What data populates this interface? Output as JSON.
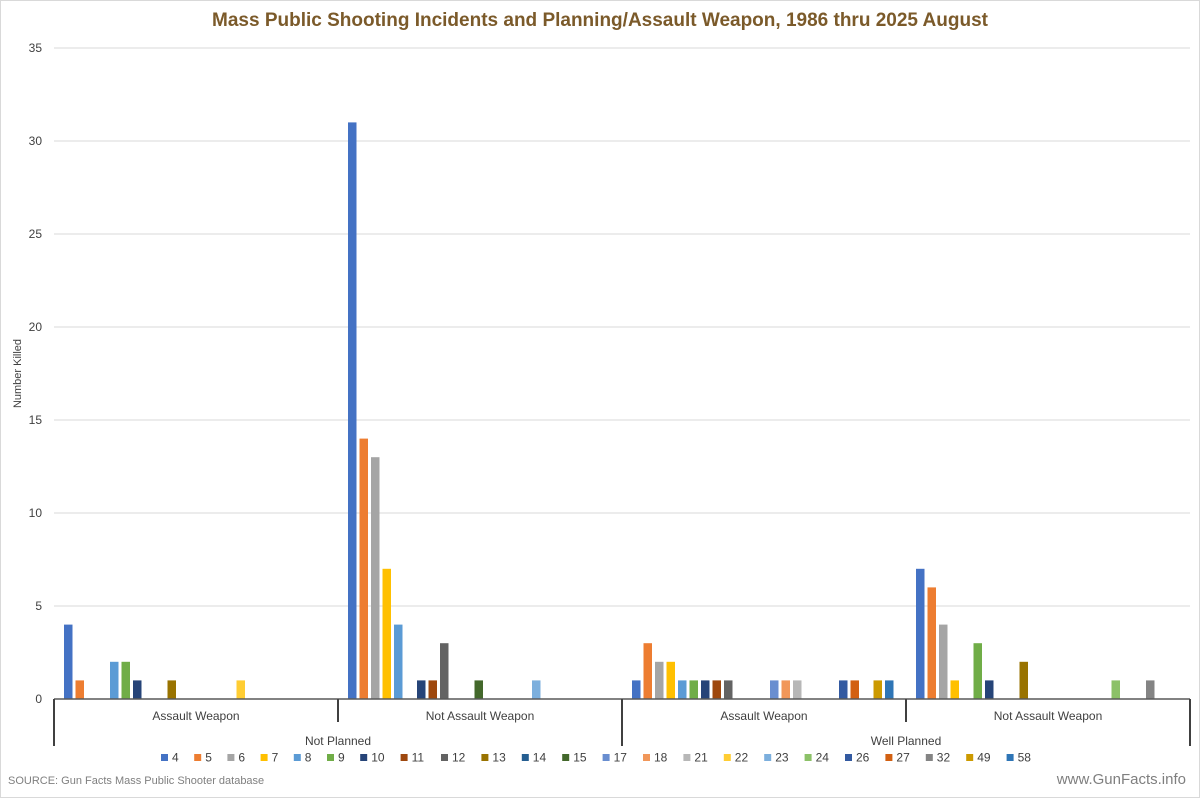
{
  "chart_data": {
    "type": "bar",
    "title": "Mass Public Shooting Incidents and Planning/Assault Weapon, 1986 thru 2025 August",
    "ylabel": "Number Killed",
    "ylim": [
      0,
      35
    ],
    "yticks": [
      0,
      5,
      10,
      15,
      20,
      25,
      30,
      35
    ],
    "grid": true,
    "legend_position": "bottom",
    "groups": [
      {
        "label": "Not Planned",
        "subcategories": [
          "Assault Weapon",
          "Not Assault Weapon"
        ]
      },
      {
        "label": "Well Planned",
        "subcategories": [
          "Assault Weapon",
          "Not Assault Weapon"
        ]
      }
    ],
    "categories": [
      "Not Planned / Assault Weapon",
      "Not Planned / Not Assault Weapon",
      "Well Planned / Assault Weapon",
      "Well Planned / Not Assault Weapon"
    ],
    "series": [
      {
        "name": "4",
        "color": "#4472c4",
        "values": [
          4,
          31,
          1,
          7
        ]
      },
      {
        "name": "5",
        "color": "#ed7d31",
        "values": [
          1,
          14,
          3,
          6
        ]
      },
      {
        "name": "6",
        "color": "#a5a5a5",
        "values": [
          0,
          13,
          2,
          4
        ]
      },
      {
        "name": "7",
        "color": "#ffc000",
        "values": [
          0,
          7,
          2,
          1
        ]
      },
      {
        "name": "8",
        "color": "#5b9bd5",
        "values": [
          2,
          4,
          1,
          0
        ]
      },
      {
        "name": "9",
        "color": "#70ad47",
        "values": [
          2,
          0,
          1,
          3
        ]
      },
      {
        "name": "10",
        "color": "#264478",
        "values": [
          1,
          1,
          1,
          1
        ]
      },
      {
        "name": "11",
        "color": "#9e480e",
        "values": [
          0,
          1,
          1,
          0
        ]
      },
      {
        "name": "12",
        "color": "#636363",
        "values": [
          0,
          3,
          1,
          0
        ]
      },
      {
        "name": "13",
        "color": "#997300",
        "values": [
          1,
          0,
          0,
          2
        ]
      },
      {
        "name": "14",
        "color": "#255e91",
        "values": [
          0,
          0,
          0,
          0
        ]
      },
      {
        "name": "15",
        "color": "#43682b",
        "values": [
          0,
          1,
          0,
          0
        ]
      },
      {
        "name": "17",
        "color": "#698ed0",
        "values": [
          0,
          0,
          1,
          0
        ]
      },
      {
        "name": "18",
        "color": "#f1975a",
        "values": [
          0,
          0,
          1,
          0
        ]
      },
      {
        "name": "21",
        "color": "#b7b7b7",
        "values": [
          0,
          0,
          1,
          0
        ]
      },
      {
        "name": "22",
        "color": "#ffcd33",
        "values": [
          1,
          0,
          0,
          0
        ]
      },
      {
        "name": "23",
        "color": "#7cafdd",
        "values": [
          0,
          1,
          0,
          0
        ]
      },
      {
        "name": "24",
        "color": "#8cc168",
        "values": [
          0,
          0,
          0,
          1
        ]
      },
      {
        "name": "26",
        "color": "#335aa1",
        "values": [
          0,
          0,
          1,
          0
        ]
      },
      {
        "name": "27",
        "color": "#d26012",
        "values": [
          0,
          0,
          1,
          0
        ]
      },
      {
        "name": "32",
        "color": "#848484",
        "values": [
          0,
          0,
          0,
          1
        ]
      },
      {
        "name": "49",
        "color": "#cc9a00",
        "values": [
          0,
          0,
          1,
          0
        ]
      },
      {
        "name": "58",
        "color": "#2e75b6",
        "values": [
          0,
          0,
          1,
          0
        ]
      }
    ]
  },
  "footer": {
    "source": "SOURCE: Gun Facts Mass Public Shooter database",
    "site": "www.GunFacts.info"
  }
}
